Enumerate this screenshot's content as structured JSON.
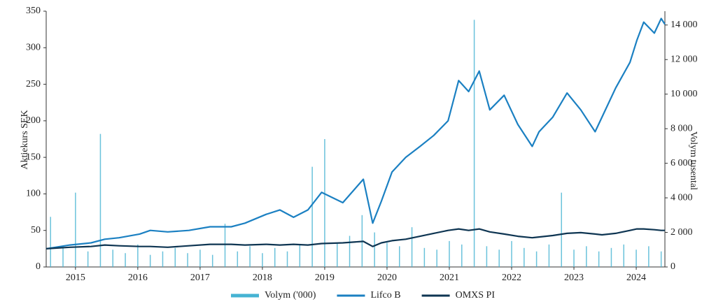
{
  "chart_data": {
    "type": "line",
    "y_label": "Aktiekurs SEK",
    "y2_label": "Volym tusental",
    "xlim": [
      2015.03,
      2024.96
    ],
    "xticks": [
      {
        "value": 2015.5,
        "label": "2015"
      },
      {
        "value": 2016.5,
        "label": "2016"
      },
      {
        "value": 2017.5,
        "label": "2017"
      },
      {
        "value": 2018.5,
        "label": "2018"
      },
      {
        "value": 2019.5,
        "label": "2019"
      },
      {
        "value": 2020.5,
        "label": "2020"
      },
      {
        "value": 2021.5,
        "label": "2021"
      },
      {
        "value": 2022.5,
        "label": "2022"
      },
      {
        "value": 2023.5,
        "label": "2023"
      },
      {
        "value": 2024.5,
        "label": "2024"
      }
    ],
    "ylim": [
      0,
      350
    ],
    "yticks": [
      0,
      50,
      100,
      150,
      200,
      250,
      300,
      350
    ],
    "y2lim": [
      0,
      14800
    ],
    "y2ticks": [
      0,
      {
        "value": 2000,
        "label": "2 000"
      },
      {
        "value": 4000,
        "label": "4 000"
      },
      {
        "value": 6000,
        "label": "6 000"
      },
      {
        "value": 8000,
        "label": "8 000"
      },
      {
        "value": 10000,
        "label": "10 000"
      },
      {
        "value": 12000,
        "label": "12 000"
      },
      {
        "value": 14000,
        "label": "14 000"
      }
    ],
    "x": [
      2015.03,
      2015.41,
      2015.75,
      2015.97,
      2016.2,
      2016.53,
      2016.7,
      2016.98,
      2017.32,
      2017.66,
      2018.0,
      2018.22,
      2018.56,
      2018.78,
      2019.0,
      2019.23,
      2019.45,
      2019.79,
      2020.12,
      2020.27,
      2020.41,
      2020.58,
      2020.8,
      2021.03,
      2021.25,
      2021.48,
      2021.65,
      2021.81,
      2021.98,
      2022.15,
      2022.38,
      2022.6,
      2022.83,
      2022.94,
      2023.16,
      2023.39,
      2023.61,
      2023.84,
      2023.95,
      2024.17,
      2024.4,
      2024.51,
      2024.62,
      2024.79,
      2024.9,
      2024.96
    ],
    "series": [
      {
        "name": "Volym ('000)",
        "color": "#45b3d3",
        "axis": "y2",
        "kind": "volume",
        "x": [
          2015.1,
          2015.3,
          2015.5,
          2015.7,
          2015.9,
          2016.1,
          2016.3,
          2016.5,
          2016.7,
          2016.9,
          2017.1,
          2017.3,
          2017.5,
          2017.7,
          2017.9,
          2018.1,
          2018.3,
          2018.5,
          2018.7,
          2018.9,
          2019.1,
          2019.3,
          2019.5,
          2019.7,
          2019.9,
          2020.1,
          2020.3,
          2020.5,
          2020.7,
          2020.9,
          2021.1,
          2021.3,
          2021.5,
          2021.7,
          2021.9,
          2022.1,
          2022.3,
          2022.5,
          2022.7,
          2022.9,
          2023.1,
          2023.3,
          2023.5,
          2023.7,
          2023.9,
          2024.1,
          2024.3,
          2024.5,
          2024.7,
          2024.9
        ],
        "values": [
          2900,
          1200,
          4300,
          900,
          7700,
          1000,
          800,
          1300,
          700,
          900,
          1100,
          800,
          1000,
          700,
          2500,
          900,
          1200,
          800,
          1100,
          900,
          1300,
          5800,
          7400,
          1400,
          1800,
          3000,
          2000,
          1400,
          1200,
          2300,
          1100,
          1000,
          1500,
          1300,
          14300,
          1200,
          1000,
          1500,
          1100,
          900,
          1300,
          4300,
          1000,
          1200,
          900,
          1100,
          1300,
          1000,
          1200,
          900
        ]
      },
      {
        "name": "Lifco B",
        "color": "#1b80c2",
        "values": [
          25,
          30,
          33,
          38,
          40,
          45,
          50,
          48,
          50,
          55,
          55,
          60,
          72,
          78,
          68,
          78,
          102,
          88,
          120,
          60,
          90,
          130,
          150,
          165,
          180,
          200,
          255,
          240,
          268,
          215,
          235,
          195,
          165,
          185,
          205,
          238,
          215,
          185,
          205,
          245,
          280,
          310,
          335,
          320,
          340,
          332
        ]
      },
      {
        "name": "OMXS PI",
        "color": "#0e3552",
        "values": [
          25,
          27,
          28,
          30,
          29,
          28,
          28,
          27,
          29,
          31,
          31,
          30,
          31,
          30,
          31,
          30,
          32,
          33,
          35,
          28,
          33,
          36,
          38,
          42,
          46,
          50,
          52,
          50,
          52,
          48,
          45,
          42,
          40,
          41,
          43,
          46,
          47,
          45,
          44,
          46,
          50,
          52,
          52,
          51,
          50,
          50
        ]
      }
    ]
  }
}
